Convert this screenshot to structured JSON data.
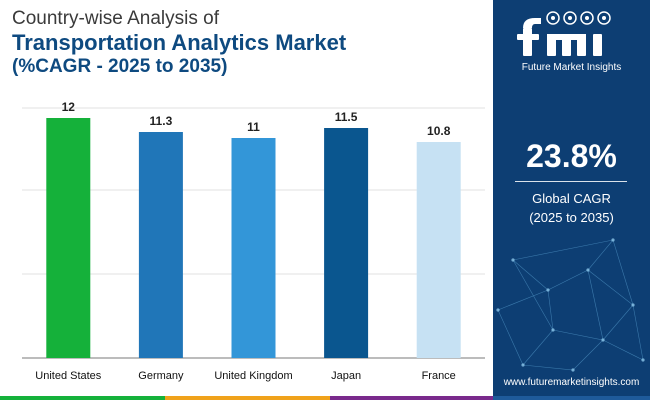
{
  "title": {
    "line1": "Country-wise Analysis of",
    "line2": "Transportation Analytics Market",
    "line3": "(%CAGR - 2025 to 2035)"
  },
  "sidebar": {
    "logo_name": "fmi",
    "logo_subtitle": "Future Market Insights",
    "cagr_value": "23.8%",
    "cagr_label_line1": "Global CAGR",
    "cagr_label_line2": "(2025 to 2035)",
    "website": "www.futuremarketinsights.com",
    "background_color": "#0d3e73"
  },
  "chart_data": {
    "type": "bar",
    "categories": [
      "United States",
      "Germany",
      "United Kingdom",
      "Japan",
      "France"
    ],
    "values": [
      12,
      11.3,
      11,
      11.5,
      10.8
    ],
    "value_labels": [
      "12",
      "11.3",
      "11",
      "11.5",
      "10.8"
    ],
    "colors": [
      "#15b13a",
      "#2076b8",
      "#3396d8",
      "#0a568f",
      "#c6e1f3"
    ],
    "ylim": [
      0,
      12.5
    ],
    "gridlines": [
      4.2,
      8.4,
      12.5
    ],
    "title": "Country-wise Analysis of Transportation Analytics Market (%CAGR - 2025 to 2035)",
    "xlabel": "",
    "ylabel": ""
  },
  "bottom_strip_colors": [
    "#15b13a",
    "#f0a21b",
    "#7a2a8c",
    "#1e5a9a"
  ]
}
